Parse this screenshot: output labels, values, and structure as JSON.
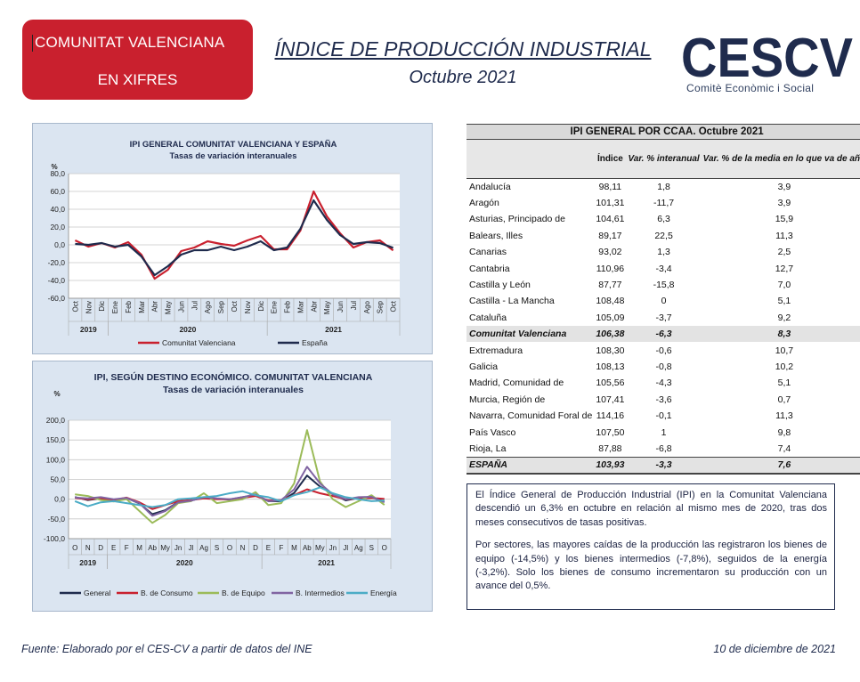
{
  "header": {
    "badge_line1": "COMUNITAT VALENCIANA",
    "badge_line2": "EN XIFRES",
    "title": "ÍNDICE DE PRODUCCIÓN INDUSTRIAL",
    "date": "Octubre 2021",
    "logo_text": "CESCV",
    "logo_subtitle": "Comitè Econòmic i Social"
  },
  "colors": {
    "brand_red": "#c9202e",
    "navy": "#1f2b4d",
    "panel_bg": "#dbe5f1"
  },
  "chart_data": [
    {
      "type": "line",
      "title": "IPI GENERAL COMUNITAT VALENCIANA Y ESPAÑA",
      "subtitle": "Tasas de variación interanuales",
      "ylabel": "%",
      "ylim": [
        -60,
        80
      ],
      "yticks": [
        -60,
        -40,
        -20,
        0,
        20,
        40,
        60,
        80
      ],
      "ytick_labels": [
        "-60,0",
        "-40,0",
        "-20,0",
        "0,0",
        "20,0",
        "40,0",
        "60,0",
        "80,0"
      ],
      "categories": [
        "Oct",
        "Nov",
        "Dic",
        "Ene",
        "Feb",
        "Mar",
        "Abr",
        "May",
        "Jun",
        "Jul",
        "Ago",
        "Sep",
        "Oct",
        "Nov",
        "Dic",
        "Ene",
        "Feb",
        "Mar",
        "Abr",
        "May",
        "Jun",
        "Jul",
        "Ago",
        "Sep",
        "Oct"
      ],
      "year_groups": [
        {
          "label": "2019",
          "start": 0,
          "end": 2
        },
        {
          "label": "2020",
          "start": 3,
          "end": 14
        },
        {
          "label": "2021",
          "start": 15,
          "end": 24
        }
      ],
      "grid": true,
      "legend": "bottom",
      "series": [
        {
          "name": "Comunitat Valenciana",
          "color": "#c9202e",
          "values": [
            5,
            -2,
            2,
            -3,
            3,
            -11,
            -38,
            -28,
            -7,
            -3,
            4,
            1,
            -1,
            5,
            10,
            -5,
            -5,
            16,
            60,
            32,
            13,
            -3,
            3,
            5,
            -6.3
          ]
        },
        {
          "name": "España",
          "color": "#1f2b4d",
          "values": [
            1,
            0,
            2,
            -2,
            0,
            -13,
            -34,
            -24,
            -11,
            -6,
            -6,
            -2,
            -6,
            -2,
            4,
            -6,
            -3,
            18,
            50,
            28,
            11,
            1,
            3,
            2,
            -3.3
          ]
        }
      ]
    },
    {
      "type": "line",
      "title": "IPI, SEGÚN DESTINO ECONÓMICO. COMUNITAT VALENCIANA",
      "subtitle": "Tasas de variación interanuales",
      "ylabel": "%",
      "ylim": [
        -100,
        200
      ],
      "yticks": [
        -100,
        -50,
        0,
        50,
        100,
        150,
        200
      ],
      "ytick_labels": [
        "-100,0",
        "-50,0",
        "0,0",
        "50,0",
        "100,0",
        "150,0",
        "200,0"
      ],
      "categories": [
        "O",
        "N",
        "D",
        "E",
        "F",
        "M",
        "Ab",
        "My",
        "Jn",
        "Jl",
        "Ag",
        "S",
        "O",
        "N",
        "D",
        "E",
        "F",
        "M",
        "Ab",
        "My",
        "Jn",
        "Jl",
        "Ag",
        "S",
        "O"
      ],
      "year_groups": [
        {
          "label": "2019",
          "start": 0,
          "end": 2
        },
        {
          "label": "2020",
          "start": 3,
          "end": 14
        },
        {
          "label": "2021",
          "start": 15,
          "end": 24
        }
      ],
      "grid": true,
      "legend": "bottom",
      "series": [
        {
          "name": "General",
          "color": "#1f2b4d",
          "values": [
            5,
            -2,
            2,
            -3,
            3,
            -11,
            -38,
            -28,
            -7,
            -3,
            4,
            1,
            -1,
            5,
            10,
            -5,
            -5,
            16,
            60,
            32,
            13,
            -3,
            3,
            5,
            -6.3
          ]
        },
        {
          "name": "B. de Consumo",
          "color": "#c9202e",
          "values": [
            3,
            0,
            2,
            -2,
            4,
            -8,
            -25,
            -15,
            -5,
            -2,
            2,
            0,
            0,
            3,
            8,
            -3,
            -2,
            10,
            25,
            15,
            8,
            0,
            2,
            3,
            0.5
          ]
        },
        {
          "name": "B. de Equipo",
          "color": "#9bbb59",
          "values": [
            12,
            8,
            -2,
            -6,
            0,
            -30,
            -60,
            -40,
            -10,
            -5,
            15,
            -10,
            -5,
            0,
            18,
            -15,
            -10,
            40,
            175,
            45,
            0,
            -20,
            -5,
            10,
            -14.5
          ]
        },
        {
          "name": "B. Intermedios",
          "color": "#8064a2",
          "values": [
            4,
            2,
            5,
            0,
            3,
            -10,
            -42,
            -30,
            -8,
            -4,
            5,
            2,
            0,
            5,
            12,
            -5,
            -2,
            25,
            82,
            40,
            12,
            0,
            5,
            6,
            -7.8
          ]
        },
        {
          "name": "Energía",
          "color": "#4bacc6",
          "values": [
            -5,
            -18,
            -8,
            -5,
            -10,
            -15,
            -20,
            -15,
            0,
            2,
            5,
            8,
            15,
            20,
            10,
            5,
            -5,
            10,
            18,
            30,
            15,
            5,
            0,
            -5,
            -3.2
          ]
        }
      ]
    },
    {
      "type": "table",
      "title": "IPI GENERAL POR CCAA. Octubre 2021",
      "columns": [
        "",
        "Índice",
        "Var. % interanual",
        "Var. % de la media en lo que va de año"
      ],
      "rows": [
        [
          "Andalucía",
          "98,11",
          "1,8",
          "3,9"
        ],
        [
          "Aragón",
          "101,31",
          "-11,7",
          "3,9"
        ],
        [
          "Asturias, Principado de",
          "104,61",
          "6,3",
          "15,9"
        ],
        [
          "Balears, Illes",
          "89,17",
          "22,5",
          "11,3"
        ],
        [
          "Canarias",
          "93,02",
          "1,3",
          "2,5"
        ],
        [
          "Cantabria",
          "110,96",
          "-3,4",
          "12,7"
        ],
        [
          "Castilla y León",
          "87,77",
          "-15,8",
          "7,0"
        ],
        [
          "Castilla - La Mancha",
          "108,48",
          "0",
          "5,1"
        ],
        [
          "Cataluña",
          "105,09",
          "-3,7",
          "9,2"
        ],
        [
          "Comunitat Valenciana",
          "106,38",
          "-6,3",
          "8,3"
        ],
        [
          "Extremadura",
          "108,30",
          "-0,6",
          "10,7"
        ],
        [
          "Galicia",
          "108,13",
          "-0,8",
          "10,2"
        ],
        [
          "Madrid, Comunidad de",
          "105,56",
          "-4,3",
          "5,1"
        ],
        [
          "Murcia, Región de",
          "107,41",
          "-3,6",
          "0,7"
        ],
        [
          "Navarra, Comunidad Foral de",
          "114,16",
          "-0,1",
          "11,3"
        ],
        [
          "País Vasco",
          "107,50",
          "1",
          "9,8"
        ],
        [
          "Rioja, La",
          "87,88",
          "-6,8",
          "7,4"
        ],
        [
          "ESPAÑA",
          "103,93",
          "-3,3",
          "7,6"
        ]
      ]
    }
  ],
  "text_box": {
    "p1": "El Índice General de Producción Industrial (IPI) en la Comunitat Valenciana descendió un 6,3% en octubre en relación al mismo mes de 2020, tras dos meses consecutivos de tasas positivas.",
    "p2": "Por sectores, las mayores caídas de la producción las registraron los bienes de equipo (-14,5%) y los bienes intermedios (-7,8%), seguidos de la energía (-3,2%). Solo los bienes de consumo incrementaron su producción con un avance del 0,5%."
  },
  "footer": {
    "source": "Fuente: Elaborado por el CES-CV a partir de datos del INE",
    "date": "10 de diciembre de 2021"
  }
}
